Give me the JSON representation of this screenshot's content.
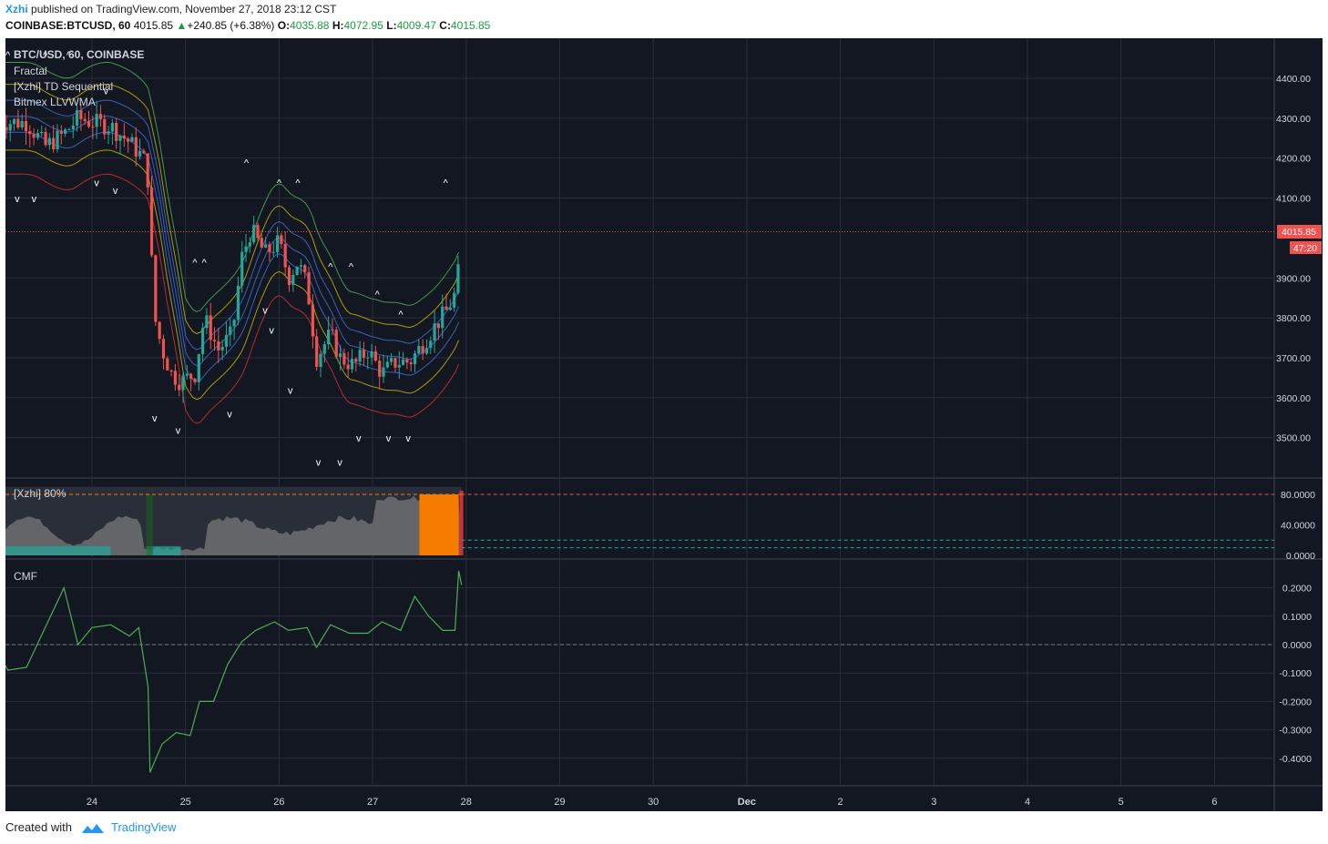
{
  "header": {
    "user": "Xzhi",
    "published_text": "published on TradingView.com, November 27, 2018 23:12 CST"
  },
  "quote": {
    "symbol": "COINBASE:BTCUSD, 60",
    "last": "4015.85",
    "up_arrow": "▲",
    "change": "+240.85 (+6.38%)",
    "o_label": "O:",
    "o": "4035.88",
    "h_label": "H:",
    "h": "4072.95",
    "l_label": "L:",
    "l": "4009.47",
    "c_label": "C:",
    "c": "4015.85"
  },
  "legend": {
    "title": "BTC/USD, 60, COINBASE",
    "ind1": "Fractal",
    "ind2": "[Xzhi] TD Sequential",
    "ind3": "Bitmex LLVWMA"
  },
  "price_tag": {
    "value": "4015.85",
    "countdown": "47:20"
  },
  "osc_label": "[Xzhi] 80%",
  "cmf_label": "CMF",
  "footer": {
    "created": "Created with",
    "brand": "TradingView"
  },
  "colors": {
    "background": "#131722",
    "grid": "#2a2e39",
    "candle_up": "#26a69a",
    "candle_down": "#ef5350",
    "price_line": "#ef5350",
    "cmf_line": "#4caf50",
    "osc_fill": "#8a8a8a",
    "osc_hot": "#f57c00",
    "band_outer_upper": "#4caf50",
    "band_mid_upper": "#c8b400",
    "band_inner": "#3f6fd8",
    "band_outer_lower": "#d32f2f"
  },
  "chart_data": [
    {
      "type": "candlestick",
      "title": "BTC/USD, 60, COINBASE",
      "x_ticks": [
        "24",
        "25",
        "26",
        "27",
        "28",
        "29",
        "30",
        "Dec",
        "2",
        "3",
        "4",
        "5",
        "6"
      ],
      "y_ticks": [
        "4400.00",
        "4300.00",
        "4200.00",
        "4100.00",
        "3900.00",
        "3800.00",
        "3700.00",
        "3600.00",
        "3500.00"
      ],
      "ylim": [
        3420,
        4480
      ],
      "last_price": 4015.85,
      "series_close_approx": [
        {
          "day": 23.3,
          "close": 4290
        },
        {
          "day": 23.5,
          "close": 4230
        },
        {
          "day": 23.7,
          "close": 4260
        },
        {
          "day": 23.85,
          "close": 4300
        },
        {
          "day": 24.0,
          "close": 4290
        },
        {
          "day": 24.2,
          "close": 4280
        },
        {
          "day": 24.4,
          "close": 4240
        },
        {
          "day": 24.55,
          "close": 4200
        },
        {
          "day": 24.62,
          "close": 4120
        },
        {
          "day": 24.65,
          "close": 3820
        },
        {
          "day": 24.75,
          "close": 3720
        },
        {
          "day": 24.85,
          "close": 3660
        },
        {
          "day": 24.95,
          "close": 3640
        },
        {
          "day": 25.1,
          "close": 3660
        },
        {
          "day": 25.2,
          "close": 3800
        },
        {
          "day": 25.35,
          "close": 3720
        },
        {
          "day": 25.5,
          "close": 3760
        },
        {
          "day": 25.6,
          "close": 3950
        },
        {
          "day": 25.7,
          "close": 4020
        },
        {
          "day": 25.85,
          "close": 3960
        },
        {
          "day": 26.0,
          "close": 3990
        },
        {
          "day": 26.1,
          "close": 3900
        },
        {
          "day": 26.2,
          "close": 3940
        },
        {
          "day": 26.3,
          "close": 3880
        },
        {
          "day": 26.4,
          "close": 3700
        },
        {
          "day": 26.55,
          "close": 3760
        },
        {
          "day": 26.65,
          "close": 3700
        },
        {
          "day": 26.8,
          "close": 3680
        },
        {
          "day": 26.95,
          "close": 3720
        },
        {
          "day": 27.1,
          "close": 3660
        },
        {
          "day": 27.25,
          "close": 3690
        },
        {
          "day": 27.4,
          "close": 3690
        },
        {
          "day": 27.55,
          "close": 3740
        },
        {
          "day": 27.7,
          "close": 3790
        },
        {
          "day": 27.8,
          "close": 3820
        },
        {
          "day": 27.9,
          "close": 3870
        },
        {
          "day": 27.95,
          "close": 4020
        }
      ]
    },
    {
      "type": "area",
      "title": "[Xzhi] 80%",
      "y_ticks": [
        "80.0000",
        "40.0000",
        "0.0000"
      ],
      "ylim": [
        0,
        90
      ],
      "levels": [
        80,
        20,
        10
      ]
    },
    {
      "type": "line",
      "title": "CMF",
      "y_ticks": [
        "0.2000",
        "0.1000",
        "0.0000",
        "-0.1000",
        "-0.2000",
        "-0.3000",
        "-0.4000"
      ],
      "ylim": [
        -0.5,
        0.3
      ],
      "points_approx": [
        {
          "day": 23.0,
          "v": -0.03
        },
        {
          "day": 23.1,
          "v": -0.09
        },
        {
          "day": 23.3,
          "v": -0.08
        },
        {
          "day": 23.5,
          "v": 0.06
        },
        {
          "day": 23.7,
          "v": 0.2
        },
        {
          "day": 23.85,
          "v": 0.0
        },
        {
          "day": 24.0,
          "v": 0.06
        },
        {
          "day": 24.2,
          "v": 0.07
        },
        {
          "day": 24.4,
          "v": 0.03
        },
        {
          "day": 24.5,
          "v": 0.06
        },
        {
          "day": 24.6,
          "v": -0.15
        },
        {
          "day": 24.62,
          "v": -0.45
        },
        {
          "day": 24.75,
          "v": -0.35
        },
        {
          "day": 24.9,
          "v": -0.31
        },
        {
          "day": 25.05,
          "v": -0.32
        },
        {
          "day": 25.15,
          "v": -0.2
        },
        {
          "day": 25.3,
          "v": -0.2
        },
        {
          "day": 25.45,
          "v": -0.07
        },
        {
          "day": 25.6,
          "v": 0.01
        },
        {
          "day": 25.75,
          "v": 0.05
        },
        {
          "day": 25.95,
          "v": 0.08
        },
        {
          "day": 26.1,
          "v": 0.05
        },
        {
          "day": 26.3,
          "v": 0.06
        },
        {
          "day": 26.4,
          "v": -0.01
        },
        {
          "day": 26.55,
          "v": 0.07
        },
        {
          "day": 26.75,
          "v": 0.04
        },
        {
          "day": 26.95,
          "v": 0.04
        },
        {
          "day": 27.1,
          "v": 0.08
        },
        {
          "day": 27.3,
          "v": 0.05
        },
        {
          "day": 27.45,
          "v": 0.17
        },
        {
          "day": 27.6,
          "v": 0.1
        },
        {
          "day": 27.75,
          "v": 0.05
        },
        {
          "day": 27.88,
          "v": 0.05
        },
        {
          "day": 27.92,
          "v": 0.26
        },
        {
          "day": 27.95,
          "v": 0.21
        }
      ]
    }
  ]
}
